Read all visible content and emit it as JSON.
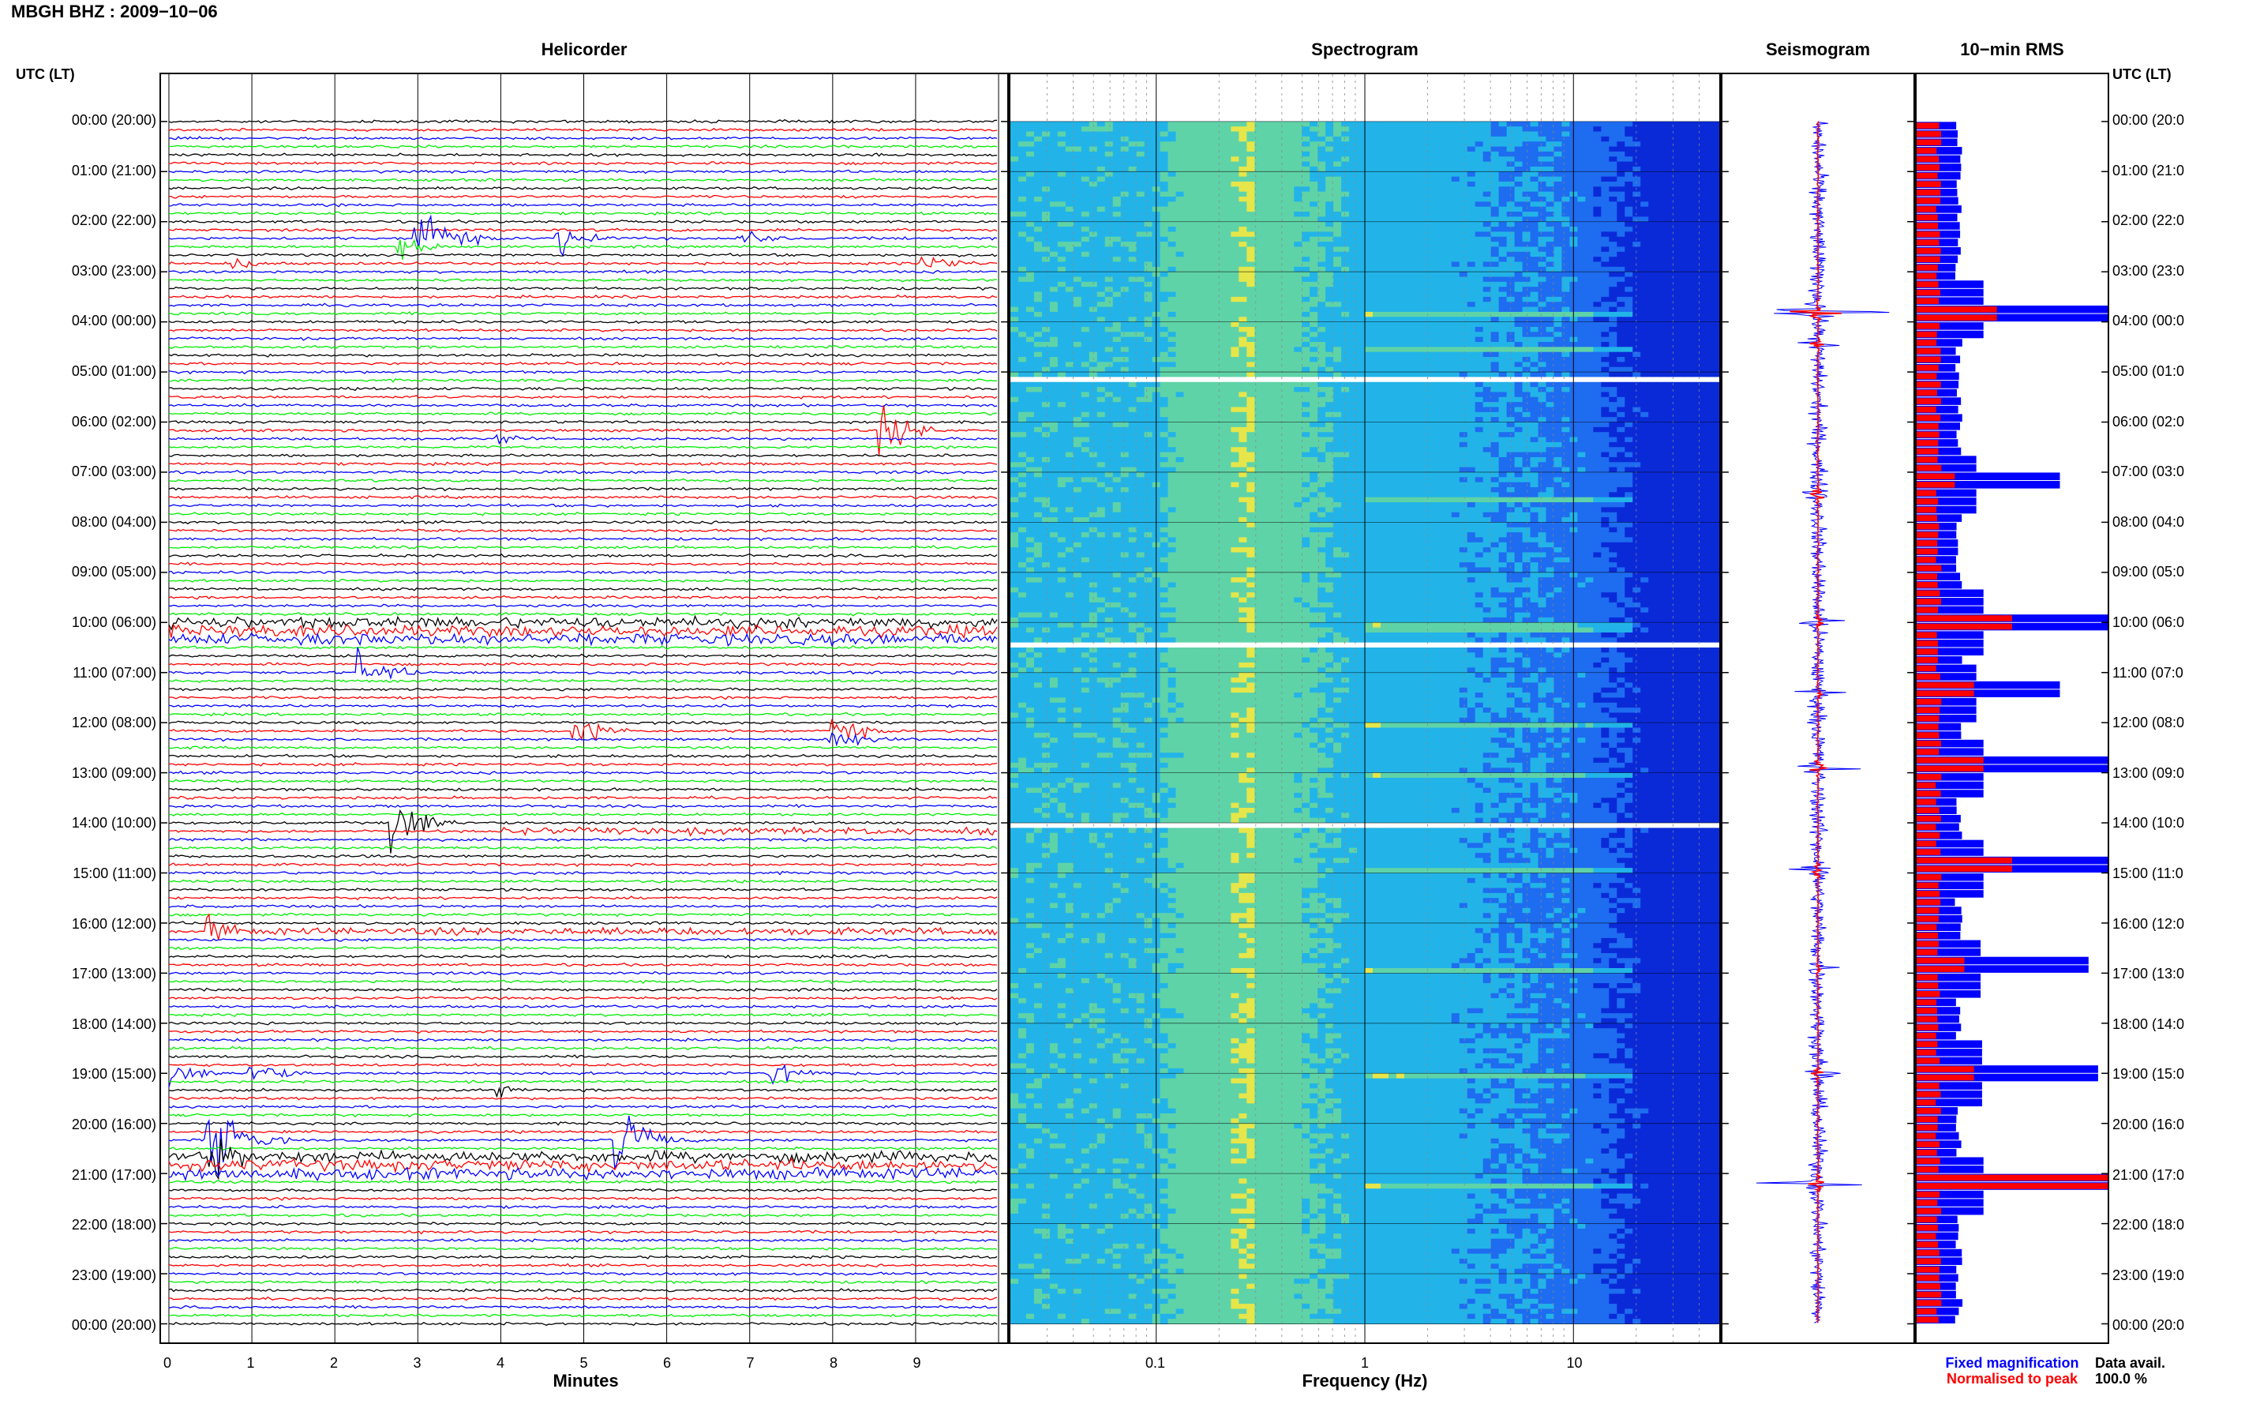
{
  "header": {
    "title": "MBGH BHZ : 2009−10−06"
  },
  "panels": {
    "helicorder": "Helicorder",
    "spectrogram": "Spectrogram",
    "seismogram": "Seismogram",
    "rms": "10−min RMS"
  },
  "axis_header_left": "UTC (LT)",
  "axis_header_right": "UTC (LT)",
  "hour_labels": [
    "00:00 (20:00)",
    "01:00 (21:00)",
    "02:00 (22:00)",
    "03:00 (23:00)",
    "04:00 (00:00)",
    "05:00 (01:00)",
    "06:00 (02:00)",
    "07:00 (03:00)",
    "08:00 (04:00)",
    "09:00 (05:00)",
    "10:00 (06:00)",
    "11:00 (07:00)",
    "12:00 (08:00)",
    "13:00 (09:00)",
    "14:00 (10:00)",
    "15:00 (11:00)",
    "16:00 (12:00)",
    "17:00 (13:00)",
    "18:00 (14:00)",
    "19:00 (15:00)",
    "20:00 (16:00)",
    "21:00 (17:00)",
    "22:00 (18:00)",
    "23:00 (19:00)",
    "00:00 (20:00)"
  ],
  "right_hour_labels": [
    "00:00 (20:0",
    "01:00 (21:0",
    "02:00 (22:0",
    "03:00 (23:0",
    "04:00 (00:0",
    "05:00 (01:0",
    "06:00 (02:0",
    "07:00 (03:0",
    "08:00 (04:0",
    "09:00 (05:0",
    "10:00 (06:0",
    "11:00 (07:0",
    "12:00 (08:0",
    "13:00 (09:0",
    "14:00 (10:0",
    "15:00 (11:0",
    "16:00 (12:0",
    "17:00 (13:0",
    "18:00 (14:0",
    "19:00 (15:0",
    "20:00 (16:0",
    "21:00 (17:0",
    "22:00 (18:0",
    "23:00 (19:0",
    "00:00 (20:0"
  ],
  "helicorder_axis": {
    "label": "Minutes",
    "ticks": [
      "0",
      "1",
      "2",
      "3",
      "4",
      "5",
      "6",
      "7",
      "8",
      "9"
    ]
  },
  "spectrogram_axis": {
    "label": "Frequency (Hz)",
    "ticks": [
      "0.1",
      "1",
      "10"
    ],
    "scale": "log"
  },
  "legend": {
    "fixed": "Fixed magnification",
    "normalised": "Normalised to peak"
  },
  "data_avail": {
    "title": "Data avail.",
    "value": "100.0 %"
  },
  "colors": {
    "trace_cycle": [
      "#000000",
      "#ff0000",
      "#0000ff",
      "#00ee00"
    ],
    "fixed": "#0000ff",
    "normalised": "#ff0000",
    "spectrogram_scale": [
      "#0a2ad8",
      "#1e6cf0",
      "#22b4e8",
      "#5fd3a8",
      "#e6e64a"
    ]
  },
  "chart_data": [
    {
      "type": "line",
      "title": "Helicorder",
      "xlabel": "Minutes",
      "xlim": [
        0,
        10
      ],
      "rows_per_hour": 6,
      "row_minutes": 10,
      "events": [
        {
          "row": 14,
          "minute": 3.0,
          "amp": 4.5,
          "color": "#0000ff"
        },
        {
          "row": 14,
          "minute": 4.7,
          "amp": 1.8,
          "color": "#0000ff"
        },
        {
          "row": 14,
          "minute": 6.9,
          "amp": 1.0,
          "color": "#0000ff"
        },
        {
          "row": 15,
          "minute": 2.8,
          "amp": 1.4,
          "color": "#0000ff"
        },
        {
          "row": 17,
          "minute": 0.8,
          "amp": 0.8,
          "color": "#000000"
        },
        {
          "row": 17,
          "minute": 9.1,
          "amp": 1.5,
          "color": "#00ee00"
        },
        {
          "row": 37,
          "minute": 8.6,
          "amp": 2.5,
          "color": "#00ee00"
        },
        {
          "row": 38,
          "minute": 4.0,
          "amp": 0.6,
          "color": "#000000"
        },
        {
          "row": 60,
          "minute": 0.0,
          "amp": 1.2,
          "color": "#000000"
        },
        {
          "row": 66,
          "minute": 2.3,
          "amp": 2.4,
          "color": "#000000"
        },
        {
          "row": 73,
          "minute": 4.9,
          "amp": 2.0,
          "color": "#00ee00"
        },
        {
          "row": 73,
          "minute": 8.0,
          "amp": 1.8,
          "color": "#00ee00"
        },
        {
          "row": 74,
          "minute": 8.0,
          "amp": 1.6,
          "color": "#000000"
        },
        {
          "row": 84,
          "minute": 2.7,
          "amp": 3.5,
          "color": "#000000"
        },
        {
          "row": 97,
          "minute": 0.5,
          "amp": 1.5,
          "color": "#000000"
        },
        {
          "row": 114,
          "minute": 0.0,
          "amp": 1.6,
          "color": "#0000ff"
        },
        {
          "row": 114,
          "minute": 1.0,
          "amp": 1.6,
          "color": "#0000ff"
        },
        {
          "row": 114,
          "minute": 7.3,
          "amp": 1.8,
          "color": "#0000ff"
        },
        {
          "row": 116,
          "minute": 4.0,
          "amp": 0.6,
          "color": "#000000"
        },
        {
          "row": 122,
          "minute": 0.5,
          "amp": 5.0,
          "color": "#00ee00"
        },
        {
          "row": 122,
          "minute": 5.4,
          "amp": 4.0,
          "color": "#0000ff"
        },
        {
          "row": 124,
          "minute": 0.5,
          "amp": 3.0,
          "color": "#00ee00"
        }
      ],
      "noisy_rows": [
        60,
        61,
        62,
        124,
        125,
        126
      ],
      "long_period_rows": [
        {
          "row": 85,
          "start": 4.0,
          "end": 10.0
        },
        {
          "row": 97,
          "start": 0.5,
          "end": 10.0
        }
      ]
    },
    {
      "type": "heatmap",
      "title": "Spectrogram",
      "xlabel": "Frequency (Hz)",
      "xscale": "log",
      "xlim": [
        0.02,
        50
      ],
      "ylim_hours": [
        0,
        24
      ],
      "band_event_hours": [
        3.8,
        4.5,
        7.5,
        10.05,
        12.0,
        13.0,
        14.9,
        16.9,
        19.0,
        21.2
      ],
      "gap_hours": [
        5.1,
        10.45,
        14.0
      ]
    },
    {
      "type": "line",
      "title": "Seismogram",
      "events_hours": [
        3.8,
        4.45,
        7.45,
        10.0,
        11.4,
        12.9,
        14.95,
        16.9,
        19.0,
        21.2
      ],
      "amplitudes": [
        1.0,
        0.3,
        0.45,
        0.35,
        0.35,
        0.5,
        0.4,
        0.25,
        0.35,
        0.6
      ]
    },
    {
      "type": "bar",
      "title": "10−min RMS",
      "bins_per_hour": 6,
      "peak_hours": [
        3.8,
        7.2,
        10.0,
        11.4,
        12.9,
        14.9,
        16.9,
        19.0,
        21.2
      ],
      "peak_fixed": [
        1.0,
        0.75,
        1.0,
        0.75,
        1.0,
        1.0,
        0.9,
        0.95,
        1.0
      ],
      "peak_normalised": [
        0.42,
        0.2,
        0.5,
        0.3,
        0.35,
        0.5,
        0.25,
        0.3,
        1.0
      ]
    }
  ]
}
